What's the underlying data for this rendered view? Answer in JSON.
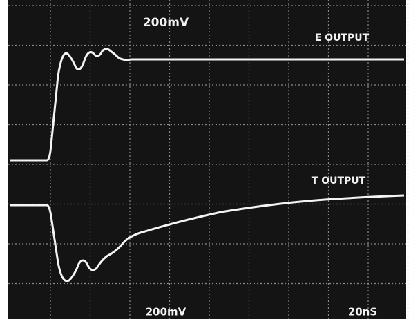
{
  "screen": {
    "top_scale": "200mV",
    "e_output": "E OUTPUT",
    "t_output": "T OUTPUT",
    "bottom_scale": "200mV",
    "time_scale": "20nS"
  }
}
